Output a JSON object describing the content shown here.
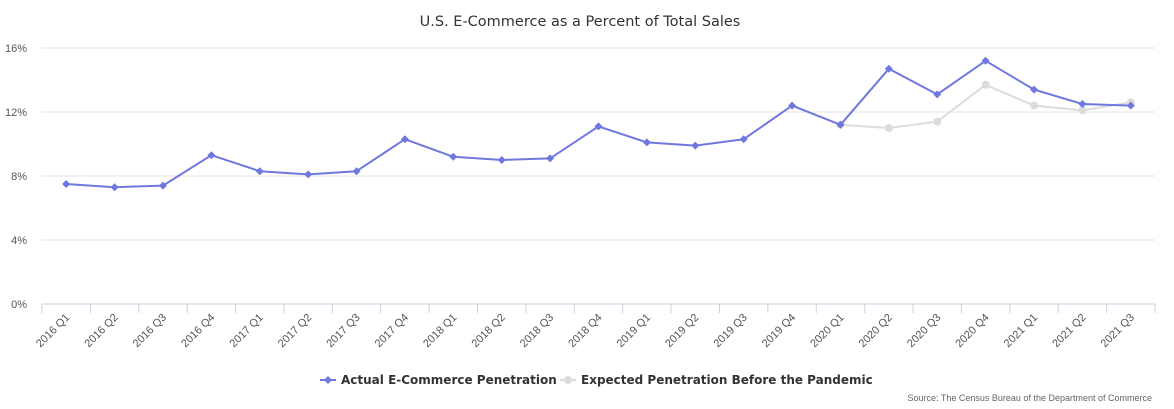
{
  "chart_data": {
    "type": "line",
    "title": "U.S. E-Commerce as a Percent of Total Sales",
    "source": "Source: The Census Bureau of the Department of Commerce",
    "categories": [
      "2016 Q1",
      "2016 Q2",
      "2016 Q3",
      "2016 Q4",
      "2017 Q1",
      "2017 Q2",
      "2017 Q3",
      "2017 Q4",
      "2018 Q1",
      "2018 Q2",
      "2018 Q3",
      "2018 Q4",
      "2019 Q1",
      "2019 Q2",
      "2019 Q3",
      "2019 Q4",
      "2020 Q1",
      "2020 Q2",
      "2020 Q3",
      "2020 Q4",
      "2021 Q1",
      "2021 Q2",
      "2021 Q3"
    ],
    "y_ticks": [
      "0%",
      "4%",
      "8%",
      "12%",
      "16%"
    ],
    "ylim": [
      0,
      16
    ],
    "grid": "horizontal",
    "legend_position": "bottom-center",
    "series": [
      {
        "name": "Actual E-Commerce Penetration",
        "color": "#6f78df",
        "marker": "diamond",
        "values": [
          7.5,
          7.3,
          7.4,
          9.3,
          8.3,
          8.1,
          8.3,
          10.3,
          9.2,
          9.0,
          9.1,
          11.1,
          10.1,
          9.9,
          10.3,
          12.4,
          11.2,
          14.7,
          13.1,
          15.2,
          13.4,
          12.5,
          12.4
        ]
      },
      {
        "name": "Expected Penetration Before the Pandemic",
        "color": "#dcdcdc",
        "marker": "circle",
        "values": [
          null,
          null,
          null,
          null,
          null,
          null,
          null,
          null,
          null,
          null,
          null,
          null,
          null,
          null,
          null,
          null,
          11.2,
          11.0,
          11.4,
          13.7,
          12.4,
          12.1,
          12.6
        ]
      }
    ]
  }
}
